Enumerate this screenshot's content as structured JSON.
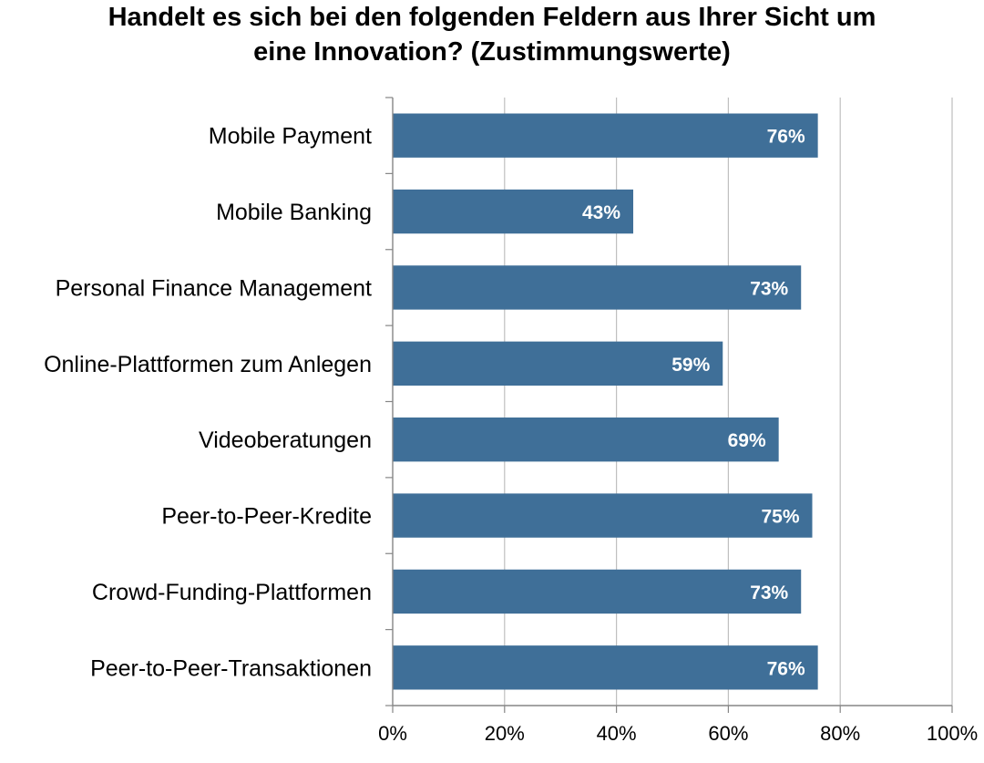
{
  "chart_data": {
    "type": "bar",
    "orientation": "horizontal",
    "title": "Handelt es sich bei den folgenden Feldern aus Ihrer Sicht um eine Innovation? (Zustimmungswerte)",
    "title_lines": [
      "Handelt es sich bei den folgenden Feldern aus Ihrer Sicht um",
      "eine Innovation? (Zustimmungswerte)"
    ],
    "categories": [
      "Mobile Payment",
      "Mobile Banking",
      "Personal Finance Management",
      "Online-Plattformen zum Anlegen",
      "Videoberatungen",
      "Peer-to-Peer-Kredite",
      "Crowd-Funding-Plattformen",
      "Peer-to-Peer-Transaktionen"
    ],
    "values": [
      76,
      43,
      73,
      59,
      69,
      75,
      73,
      76
    ],
    "data_labels": [
      "76%",
      "43%",
      "73%",
      "59%",
      "69%",
      "75%",
      "73%",
      "76%"
    ],
    "xlim": [
      0,
      100
    ],
    "x_ticks": [
      0,
      20,
      40,
      60,
      80,
      100
    ],
    "x_tick_labels": [
      "0%",
      "20%",
      "40%",
      "60%",
      "80%",
      "100%"
    ],
    "xlabel": "",
    "ylabel": "",
    "grid": "vertical",
    "legend": "none",
    "colors": {
      "bar": "#3f6f98",
      "grid": "#bfbfbf",
      "axis": "#868686",
      "data_label": "#ffffff"
    }
  }
}
